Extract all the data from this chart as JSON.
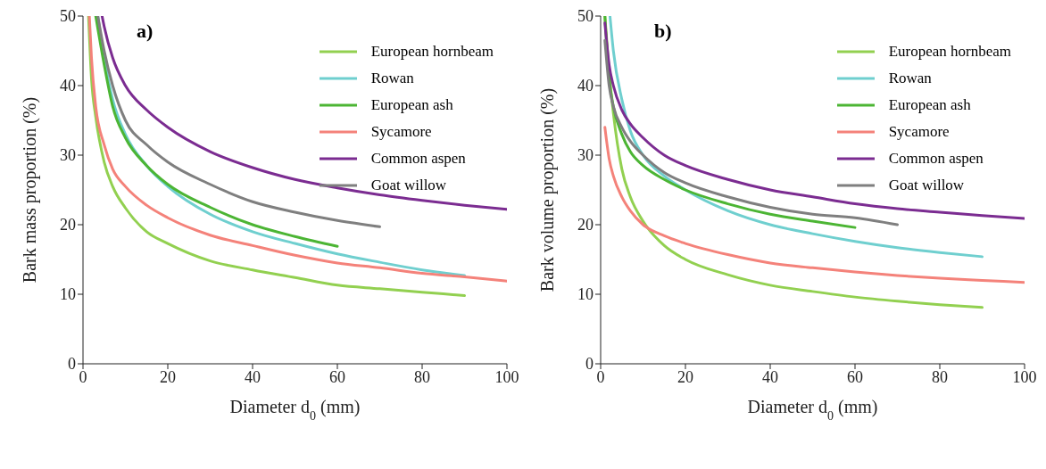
{
  "chart_data": [
    {
      "type": "line",
      "annotations": [
        "a)"
      ],
      "xlabel": "Diameter d$_{0}$ (mm)",
      "ylabel": "Bark mass proportion (%)",
      "xlim": [
        0,
        100
      ],
      "xticks": [
        0,
        20,
        40,
        60,
        80,
        100
      ],
      "ylim": [
        0,
        50
      ],
      "yticks": [
        0,
        10,
        20,
        30,
        40,
        50
      ],
      "grid": false,
      "legend": "top right",
      "series": [
        {
          "name": "European hornbeam",
          "color": "#92d050",
          "x": [
            1.3,
            2,
            3,
            5,
            7,
            10,
            15,
            20,
            30,
            40,
            50,
            60,
            70,
            80,
            90
          ],
          "values": [
            50,
            41,
            35.5,
            29,
            25.5,
            22.4,
            19,
            17.3,
            14.8,
            13.5,
            12.4,
            11.3,
            10.8,
            10.3,
            9.8
          ]
        },
        {
          "name": "Rowan",
          "color": "#6fcfcf",
          "x": [
            3.5,
            5,
            7,
            10,
            15,
            20,
            30,
            40,
            50,
            60,
            70,
            80,
            90
          ],
          "values": [
            50,
            44,
            38,
            33,
            28.5,
            25.5,
            21.5,
            19,
            17.3,
            15.8,
            14.6,
            13.5,
            12.7
          ]
        },
        {
          "name": "European ash",
          "color": "#4cb534",
          "x": [
            3,
            5,
            7,
            10,
            15,
            20,
            30,
            40,
            50,
            60
          ],
          "values": [
            50,
            43,
            37,
            32.5,
            28.5,
            25.8,
            22.5,
            20,
            18.3,
            16.9
          ]
        },
        {
          "name": "Sycamore",
          "color": "#f4827a",
          "x": [
            1.5,
            2,
            3,
            5,
            7,
            10,
            15,
            20,
            30,
            40,
            50,
            60,
            70,
            80,
            90,
            100
          ],
          "values": [
            50,
            44,
            37,
            31.5,
            28,
            25.5,
            22.8,
            21,
            18.5,
            17,
            15.6,
            14.5,
            13.8,
            13,
            12.5,
            11.9
          ]
        },
        {
          "name": "Common aspen",
          "color": "#7b2c91",
          "x": [
            4.5,
            5,
            7,
            10,
            15,
            20,
            30,
            40,
            50,
            60,
            70,
            80,
            90,
            100
          ],
          "values": [
            50,
            48.5,
            44,
            40,
            36.5,
            34,
            30.5,
            28.2,
            26.5,
            25.3,
            24.3,
            23.5,
            22.8,
            22.2
          ]
        },
        {
          "name": "Goat willow",
          "color": "#7f7f7f",
          "x": [
            3.5,
            5,
            7,
            10,
            15,
            20,
            30,
            40,
            50,
            60,
            70
          ],
          "values": [
            50,
            45,
            40,
            35,
            31.5,
            29,
            25.8,
            23.3,
            21.8,
            20.6,
            19.7
          ]
        }
      ]
    },
    {
      "type": "line",
      "annotations": [
        "b)"
      ],
      "xlabel": "Diameter d$_{0}$ (mm)",
      "ylabel": "Bark volume proportion (%)",
      "xlim": [
        0,
        100
      ],
      "xticks": [
        0,
        20,
        40,
        60,
        80,
        100
      ],
      "ylim": [
        0,
        50
      ],
      "yticks": [
        0,
        10,
        20,
        30,
        40,
        50
      ],
      "grid": false,
      "legend": "top right",
      "series": [
        {
          "name": "European hornbeam",
          "color": "#92d050",
          "x": [
            1,
            2,
            3,
            5,
            7,
            10,
            15,
            20,
            30,
            40,
            50,
            60,
            70,
            80,
            90
          ],
          "values": [
            50,
            42,
            36,
            28,
            24,
            20.5,
            17,
            15,
            12.8,
            11.3,
            10.4,
            9.6,
            9,
            8.5,
            8.1
          ]
        },
        {
          "name": "Rowan",
          "color": "#6fcfcf",
          "x": [
            2.2,
            3,
            5,
            7,
            10,
            15,
            20,
            30,
            40,
            50,
            60,
            70,
            80,
            90
          ],
          "values": [
            50,
            45,
            38,
            33.5,
            30,
            27,
            25,
            22,
            20,
            18.7,
            17.6,
            16.7,
            16,
            15.4
          ]
        },
        {
          "name": "European ash",
          "color": "#4cb534",
          "x": [
            1,
            2,
            3,
            5,
            7,
            10,
            15,
            20,
            30,
            40,
            50,
            60
          ],
          "values": [
            50,
            41,
            37,
            33,
            30.5,
            28.5,
            26.5,
            25,
            23,
            21.5,
            20.5,
            19.6
          ]
        },
        {
          "name": "Sycamore",
          "color": "#f4827a",
          "x": [
            1,
            2,
            3,
            5,
            7,
            10,
            15,
            20,
            30,
            40,
            50,
            60,
            70,
            80,
            90,
            100
          ],
          "values": [
            34,
            29.5,
            27,
            24,
            22,
            20,
            18.4,
            17.3,
            15.7,
            14.5,
            13.8,
            13.2,
            12.7,
            12.3,
            12,
            11.7
          ]
        },
        {
          "name": "Common aspen",
          "color": "#7b2c91",
          "x": [
            1,
            2,
            3,
            5,
            7,
            10,
            15,
            20,
            30,
            40,
            50,
            60,
            70,
            80,
            90,
            100
          ],
          "values": [
            49,
            43,
            40,
            36.5,
            34.5,
            32.5,
            30,
            28.5,
            26.5,
            25,
            24,
            23,
            22.3,
            21.8,
            21.3,
            20.9
          ]
        },
        {
          "name": "Goat willow",
          "color": "#7f7f7f",
          "x": [
            1,
            2,
            3,
            5,
            7,
            10,
            15,
            20,
            30,
            40,
            50,
            60,
            70
          ],
          "values": [
            46.5,
            40,
            37,
            34,
            32,
            30,
            27.5,
            26,
            24,
            22.5,
            21.5,
            21,
            20
          ]
        }
      ]
    }
  ]
}
